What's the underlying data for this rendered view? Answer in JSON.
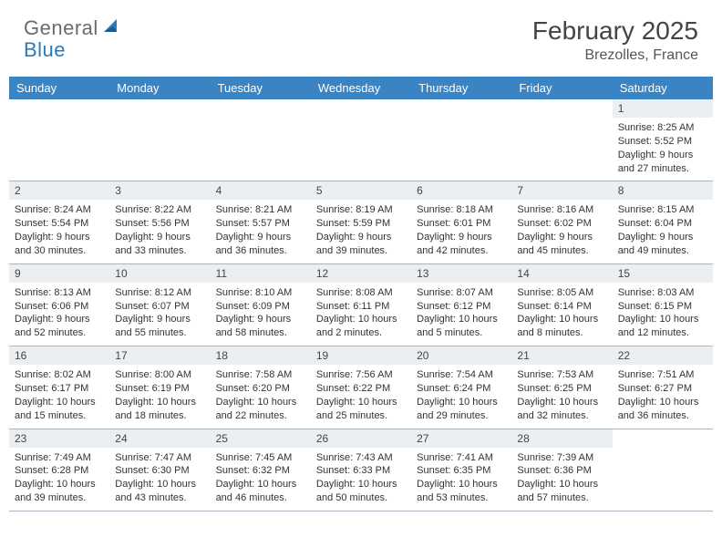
{
  "logo": {
    "text1": "General",
    "text2": "Blue"
  },
  "title": "February 2025",
  "location": "Brezolles, France",
  "colors": {
    "header_bg": "#3b84c4",
    "daynum_bg": "#eceff1",
    "border": "#a9b4bf",
    "logo_gray": "#6b6b6b",
    "logo_blue": "#2a7ab9"
  },
  "dayHeaders": [
    "Sunday",
    "Monday",
    "Tuesday",
    "Wednesday",
    "Thursday",
    "Friday",
    "Saturday"
  ],
  "weeks": [
    [
      null,
      null,
      null,
      null,
      null,
      null,
      {
        "n": "1",
        "sunrise": "8:25 AM",
        "sunset": "5:52 PM",
        "dlh": "9",
        "dlm": "27"
      }
    ],
    [
      {
        "n": "2",
        "sunrise": "8:24 AM",
        "sunset": "5:54 PM",
        "dlh": "9",
        "dlm": "30"
      },
      {
        "n": "3",
        "sunrise": "8:22 AM",
        "sunset": "5:56 PM",
        "dlh": "9",
        "dlm": "33"
      },
      {
        "n": "4",
        "sunrise": "8:21 AM",
        "sunset": "5:57 PM",
        "dlh": "9",
        "dlm": "36"
      },
      {
        "n": "5",
        "sunrise": "8:19 AM",
        "sunset": "5:59 PM",
        "dlh": "9",
        "dlm": "39"
      },
      {
        "n": "6",
        "sunrise": "8:18 AM",
        "sunset": "6:01 PM",
        "dlh": "9",
        "dlm": "42"
      },
      {
        "n": "7",
        "sunrise": "8:16 AM",
        "sunset": "6:02 PM",
        "dlh": "9",
        "dlm": "45"
      },
      {
        "n": "8",
        "sunrise": "8:15 AM",
        "sunset": "6:04 PM",
        "dlh": "9",
        "dlm": "49"
      }
    ],
    [
      {
        "n": "9",
        "sunrise": "8:13 AM",
        "sunset": "6:06 PM",
        "dlh": "9",
        "dlm": "52"
      },
      {
        "n": "10",
        "sunrise": "8:12 AM",
        "sunset": "6:07 PM",
        "dlh": "9",
        "dlm": "55"
      },
      {
        "n": "11",
        "sunrise": "8:10 AM",
        "sunset": "6:09 PM",
        "dlh": "9",
        "dlm": "58"
      },
      {
        "n": "12",
        "sunrise": "8:08 AM",
        "sunset": "6:11 PM",
        "dlh": "10",
        "dlm": "2"
      },
      {
        "n": "13",
        "sunrise": "8:07 AM",
        "sunset": "6:12 PM",
        "dlh": "10",
        "dlm": "5"
      },
      {
        "n": "14",
        "sunrise": "8:05 AM",
        "sunset": "6:14 PM",
        "dlh": "10",
        "dlm": "8"
      },
      {
        "n": "15",
        "sunrise": "8:03 AM",
        "sunset": "6:15 PM",
        "dlh": "10",
        "dlm": "12"
      }
    ],
    [
      {
        "n": "16",
        "sunrise": "8:02 AM",
        "sunset": "6:17 PM",
        "dlh": "10",
        "dlm": "15"
      },
      {
        "n": "17",
        "sunrise": "8:00 AM",
        "sunset": "6:19 PM",
        "dlh": "10",
        "dlm": "18"
      },
      {
        "n": "18",
        "sunrise": "7:58 AM",
        "sunset": "6:20 PM",
        "dlh": "10",
        "dlm": "22"
      },
      {
        "n": "19",
        "sunrise": "7:56 AM",
        "sunset": "6:22 PM",
        "dlh": "10",
        "dlm": "25"
      },
      {
        "n": "20",
        "sunrise": "7:54 AM",
        "sunset": "6:24 PM",
        "dlh": "10",
        "dlm": "29"
      },
      {
        "n": "21",
        "sunrise": "7:53 AM",
        "sunset": "6:25 PM",
        "dlh": "10",
        "dlm": "32"
      },
      {
        "n": "22",
        "sunrise": "7:51 AM",
        "sunset": "6:27 PM",
        "dlh": "10",
        "dlm": "36"
      }
    ],
    [
      {
        "n": "23",
        "sunrise": "7:49 AM",
        "sunset": "6:28 PM",
        "dlh": "10",
        "dlm": "39"
      },
      {
        "n": "24",
        "sunrise": "7:47 AM",
        "sunset": "6:30 PM",
        "dlh": "10",
        "dlm": "43"
      },
      {
        "n": "25",
        "sunrise": "7:45 AM",
        "sunset": "6:32 PM",
        "dlh": "10",
        "dlm": "46"
      },
      {
        "n": "26",
        "sunrise": "7:43 AM",
        "sunset": "6:33 PM",
        "dlh": "10",
        "dlm": "50"
      },
      {
        "n": "27",
        "sunrise": "7:41 AM",
        "sunset": "6:35 PM",
        "dlh": "10",
        "dlm": "53"
      },
      {
        "n": "28",
        "sunrise": "7:39 AM",
        "sunset": "6:36 PM",
        "dlh": "10",
        "dlm": "57"
      },
      null
    ]
  ],
  "labels": {
    "sunrise": "Sunrise: ",
    "sunset": "Sunset: ",
    "daylight_pre": "Daylight: ",
    "daylight_mid": " hours and ",
    "daylight_post": " minutes."
  }
}
